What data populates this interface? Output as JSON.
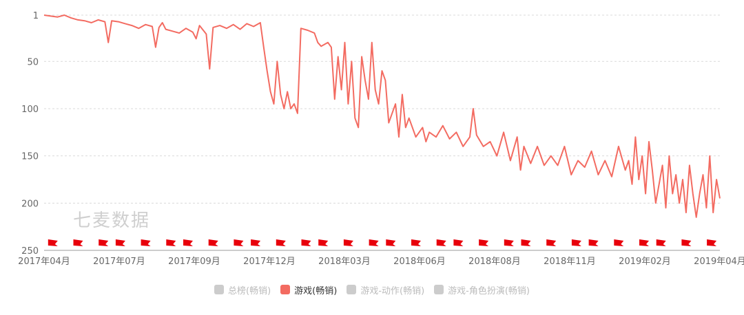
{
  "watermark": "七麦数据",
  "colors": {
    "line": "#f36b61",
    "flag": "#e8000b",
    "inactive": "#cccccc",
    "grid": "#d9d9d9",
    "axis_text": "#666666"
  },
  "legend": [
    {
      "label": "总榜(畅销)",
      "active": false
    },
    {
      "label": "游戏(畅销)",
      "active": true
    },
    {
      "label": "游戏-动作(畅销)",
      "active": false
    },
    {
      "label": "游戏-角色扮演(畅销)",
      "active": false
    }
  ],
  "chart_data": {
    "type": "line",
    "y_inverted": true,
    "ylim": [
      1,
      250
    ],
    "y_ticks": [
      1,
      50,
      100,
      150,
      200,
      250
    ],
    "x_ticks": [
      "2017年04月",
      "2017年07月",
      "2017年09月",
      "2017年12月",
      "2018年03月",
      "2018年06月",
      "2018年08月",
      "2018年11月",
      "2019年02月",
      "2019年04月"
    ],
    "grid": true,
    "series": [
      {
        "name": "游戏(畅销)",
        "points": [
          [
            0.0,
            1
          ],
          [
            0.01,
            2
          ],
          [
            0.02,
            3
          ],
          [
            0.03,
            1
          ],
          [
            0.04,
            4
          ],
          [
            0.05,
            6
          ],
          [
            0.06,
            7
          ],
          [
            0.07,
            9
          ],
          [
            0.08,
            6
          ],
          [
            0.09,
            8
          ],
          [
            0.095,
            30
          ],
          [
            0.1,
            7
          ],
          [
            0.11,
            8
          ],
          [
            0.12,
            10
          ],
          [
            0.13,
            12
          ],
          [
            0.14,
            15
          ],
          [
            0.15,
            11
          ],
          [
            0.16,
            13
          ],
          [
            0.165,
            35
          ],
          [
            0.17,
            14
          ],
          [
            0.175,
            9
          ],
          [
            0.18,
            16
          ],
          [
            0.19,
            18
          ],
          [
            0.2,
            20
          ],
          [
            0.21,
            15
          ],
          [
            0.22,
            19
          ],
          [
            0.225,
            26
          ],
          [
            0.23,
            12
          ],
          [
            0.24,
            21
          ],
          [
            0.245,
            58
          ],
          [
            0.25,
            14
          ],
          [
            0.26,
            12
          ],
          [
            0.27,
            15
          ],
          [
            0.28,
            11
          ],
          [
            0.29,
            16
          ],
          [
            0.3,
            10
          ],
          [
            0.31,
            13
          ],
          [
            0.32,
            9
          ],
          [
            0.325,
            35
          ],
          [
            0.33,
            60
          ],
          [
            0.335,
            82
          ],
          [
            0.34,
            95
          ],
          [
            0.345,
            50
          ],
          [
            0.35,
            85
          ],
          [
            0.355,
            100
          ],
          [
            0.36,
            82
          ],
          [
            0.365,
            100
          ],
          [
            0.37,
            95
          ],
          [
            0.375,
            105
          ],
          [
            0.38,
            15
          ],
          [
            0.39,
            17
          ],
          [
            0.4,
            20
          ],
          [
            0.405,
            30
          ],
          [
            0.41,
            34
          ],
          [
            0.42,
            30
          ],
          [
            0.425,
            35
          ],
          [
            0.43,
            90
          ],
          [
            0.435,
            45
          ],
          [
            0.44,
            80
          ],
          [
            0.445,
            30
          ],
          [
            0.45,
            95
          ],
          [
            0.455,
            50
          ],
          [
            0.46,
            110
          ],
          [
            0.465,
            120
          ],
          [
            0.47,
            45
          ],
          [
            0.475,
            70
          ],
          [
            0.48,
            90
          ],
          [
            0.485,
            30
          ],
          [
            0.49,
            80
          ],
          [
            0.495,
            95
          ],
          [
            0.5,
            60
          ],
          [
            0.505,
            70
          ],
          [
            0.51,
            115
          ],
          [
            0.52,
            95
          ],
          [
            0.525,
            130
          ],
          [
            0.53,
            85
          ],
          [
            0.535,
            120
          ],
          [
            0.54,
            110
          ],
          [
            0.55,
            130
          ],
          [
            0.56,
            120
          ],
          [
            0.565,
            135
          ],
          [
            0.57,
            125
          ],
          [
            0.58,
            130
          ],
          [
            0.59,
            118
          ],
          [
            0.6,
            132
          ],
          [
            0.61,
            125
          ],
          [
            0.62,
            140
          ],
          [
            0.63,
            130
          ],
          [
            0.635,
            100
          ],
          [
            0.64,
            128
          ],
          [
            0.65,
            140
          ],
          [
            0.66,
            135
          ],
          [
            0.67,
            150
          ],
          [
            0.68,
            125
          ],
          [
            0.69,
            155
          ],
          [
            0.7,
            130
          ],
          [
            0.705,
            165
          ],
          [
            0.71,
            140
          ],
          [
            0.72,
            158
          ],
          [
            0.73,
            140
          ],
          [
            0.74,
            160
          ],
          [
            0.75,
            150
          ],
          [
            0.76,
            160
          ],
          [
            0.77,
            140
          ],
          [
            0.78,
            170
          ],
          [
            0.79,
            155
          ],
          [
            0.8,
            162
          ],
          [
            0.81,
            145
          ],
          [
            0.82,
            170
          ],
          [
            0.83,
            155
          ],
          [
            0.84,
            172
          ],
          [
            0.85,
            140
          ],
          [
            0.86,
            165
          ],
          [
            0.865,
            155
          ],
          [
            0.87,
            180
          ],
          [
            0.875,
            130
          ],
          [
            0.88,
            175
          ],
          [
            0.885,
            150
          ],
          [
            0.89,
            190
          ],
          [
            0.895,
            135
          ],
          [
            0.9,
            165
          ],
          [
            0.905,
            200
          ],
          [
            0.91,
            180
          ],
          [
            0.915,
            160
          ],
          [
            0.92,
            205
          ],
          [
            0.925,
            150
          ],
          [
            0.93,
            190
          ],
          [
            0.935,
            170
          ],
          [
            0.94,
            200
          ],
          [
            0.945,
            175
          ],
          [
            0.95,
            210
          ],
          [
            0.955,
            160
          ],
          [
            0.96,
            190
          ],
          [
            0.965,
            215
          ],
          [
            0.97,
            190
          ],
          [
            0.975,
            170
          ],
          [
            0.98,
            205
          ],
          [
            0.985,
            150
          ],
          [
            0.99,
            210
          ],
          [
            0.995,
            175
          ],
          [
            1.0,
            195
          ]
        ]
      }
    ],
    "flags_count": 30
  }
}
